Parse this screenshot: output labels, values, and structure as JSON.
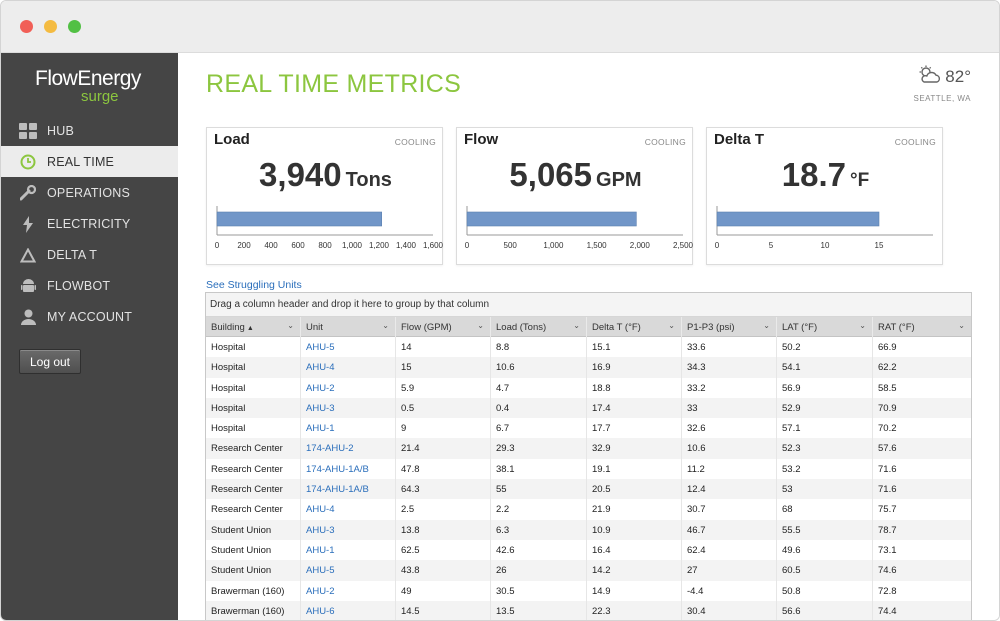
{
  "app": {
    "logo_main": "FlowEnergy",
    "logo_sub": "surge",
    "accent_color": "#8cc63f",
    "link_color": "#2a6ebb"
  },
  "sidebar": {
    "items": [
      {
        "label": "HUB",
        "icon": "grid-icon"
      },
      {
        "label": "REAL TIME",
        "icon": "clock-icon"
      },
      {
        "label": "OPERATIONS",
        "icon": "wrench-icon"
      },
      {
        "label": "ELECTRICITY",
        "icon": "bolt-icon"
      },
      {
        "label": "DELTA T",
        "icon": "triangle-icon"
      },
      {
        "label": "FLOWBOT",
        "icon": "robot-icon"
      },
      {
        "label": "MY ACCOUNT",
        "icon": "user-icon"
      }
    ],
    "active_index": 1,
    "logout_label": "Log out"
  },
  "header": {
    "title": "REAL TIME METRICS",
    "weather_temp": "82°",
    "weather_location": "SEATTLE, WA",
    "weather_icon": "partly-cloudy-icon"
  },
  "cards": [
    {
      "title": "Load",
      "mode": "COOLING",
      "value": "3,940",
      "unit": "Tons"
    },
    {
      "title": "Flow",
      "mode": "COOLING",
      "value": "5,065",
      "unit": "GPM"
    },
    {
      "title": "Delta T",
      "mode": "COOLING",
      "value": "18.7",
      "unit": "°F"
    }
  ],
  "chart_data": [
    {
      "type": "bar",
      "orientation": "horizontal",
      "title": "Load",
      "values": [
        1220
      ],
      "xlim": [
        0,
        1600
      ],
      "ticks": [
        "0",
        "200",
        "400",
        "600",
        "800",
        "1,000",
        "1,200",
        "1,400",
        "1,600"
      ],
      "color": "#7196c8"
    },
    {
      "type": "bar",
      "orientation": "horizontal",
      "title": "Flow",
      "values": [
        1960
      ],
      "xlim": [
        0,
        2500
      ],
      "ticks": [
        "0",
        "500",
        "1,000",
        "1,500",
        "2,000",
        "2,500"
      ],
      "color": "#7196c8"
    },
    {
      "type": "bar",
      "orientation": "horizontal",
      "title": "Delta T",
      "values": [
        15
      ],
      "xlim": [
        0,
        20
      ],
      "ticks": [
        "0",
        "5",
        "10",
        "15"
      ],
      "color": "#7196c8"
    }
  ],
  "struggling_link": "See Struggling Units",
  "grid": {
    "group_hint": "Drag a column header and drop it here to group by that column",
    "columns": [
      "Building",
      "Unit",
      "Flow (GPM)",
      "Load (Tons)",
      "Delta T (°F)",
      "P1-P3 (psi)",
      "LAT (°F)",
      "RAT (°F)"
    ],
    "sort_indicator": "▲",
    "rows": [
      [
        "Hospital",
        "AHU-5",
        "14",
        "8.8",
        "15.1",
        "33.6",
        "50.2",
        "66.9"
      ],
      [
        "Hospital",
        "AHU-4",
        "15",
        "10.6",
        "16.9",
        "34.3",
        "54.1",
        "62.2"
      ],
      [
        "Hospital",
        "AHU-2",
        "5.9",
        "4.7",
        "18.8",
        "33.2",
        "56.9",
        "58.5"
      ],
      [
        "Hospital",
        "AHU-3",
        "0.5",
        "0.4",
        "17.4",
        "33",
        "52.9",
        "70.9"
      ],
      [
        "Hospital",
        "AHU-1",
        "9",
        "6.7",
        "17.7",
        "32.6",
        "57.1",
        "70.2"
      ],
      [
        "Research Center",
        "174-AHU-2",
        "21.4",
        "29.3",
        "32.9",
        "10.6",
        "52.3",
        "57.6"
      ],
      [
        "Research Center",
        "174-AHU-1A/B",
        "47.8",
        "38.1",
        "19.1",
        "11.2",
        "53.2",
        "71.6"
      ],
      [
        "Research Center",
        "174-AHU-1A/B",
        "64.3",
        "55",
        "20.5",
        "12.4",
        "53",
        "71.6"
      ],
      [
        "Research Center",
        "AHU-4",
        "2.5",
        "2.2",
        "21.9",
        "30.7",
        "68",
        "75.7"
      ],
      [
        "Student Union",
        "AHU-3",
        "13.8",
        "6.3",
        "10.9",
        "46.7",
        "55.5",
        "78.7"
      ],
      [
        "Student Union",
        "AHU-1",
        "62.5",
        "42.6",
        "16.4",
        "62.4",
        "49.6",
        "73.1"
      ],
      [
        "Student Union",
        "AHU-5",
        "43.8",
        "26",
        "14.2",
        "27",
        "60.5",
        "74.6"
      ],
      [
        "Brawerman (160)",
        "AHU-2",
        "49",
        "30.5",
        "14.9",
        "-4.4",
        "50.8",
        "72.8"
      ],
      [
        "Brawerman (160)",
        "AHU-6",
        "14.5",
        "13.5",
        "22.3",
        "30.4",
        "56.6",
        "74.4"
      ]
    ]
  }
}
